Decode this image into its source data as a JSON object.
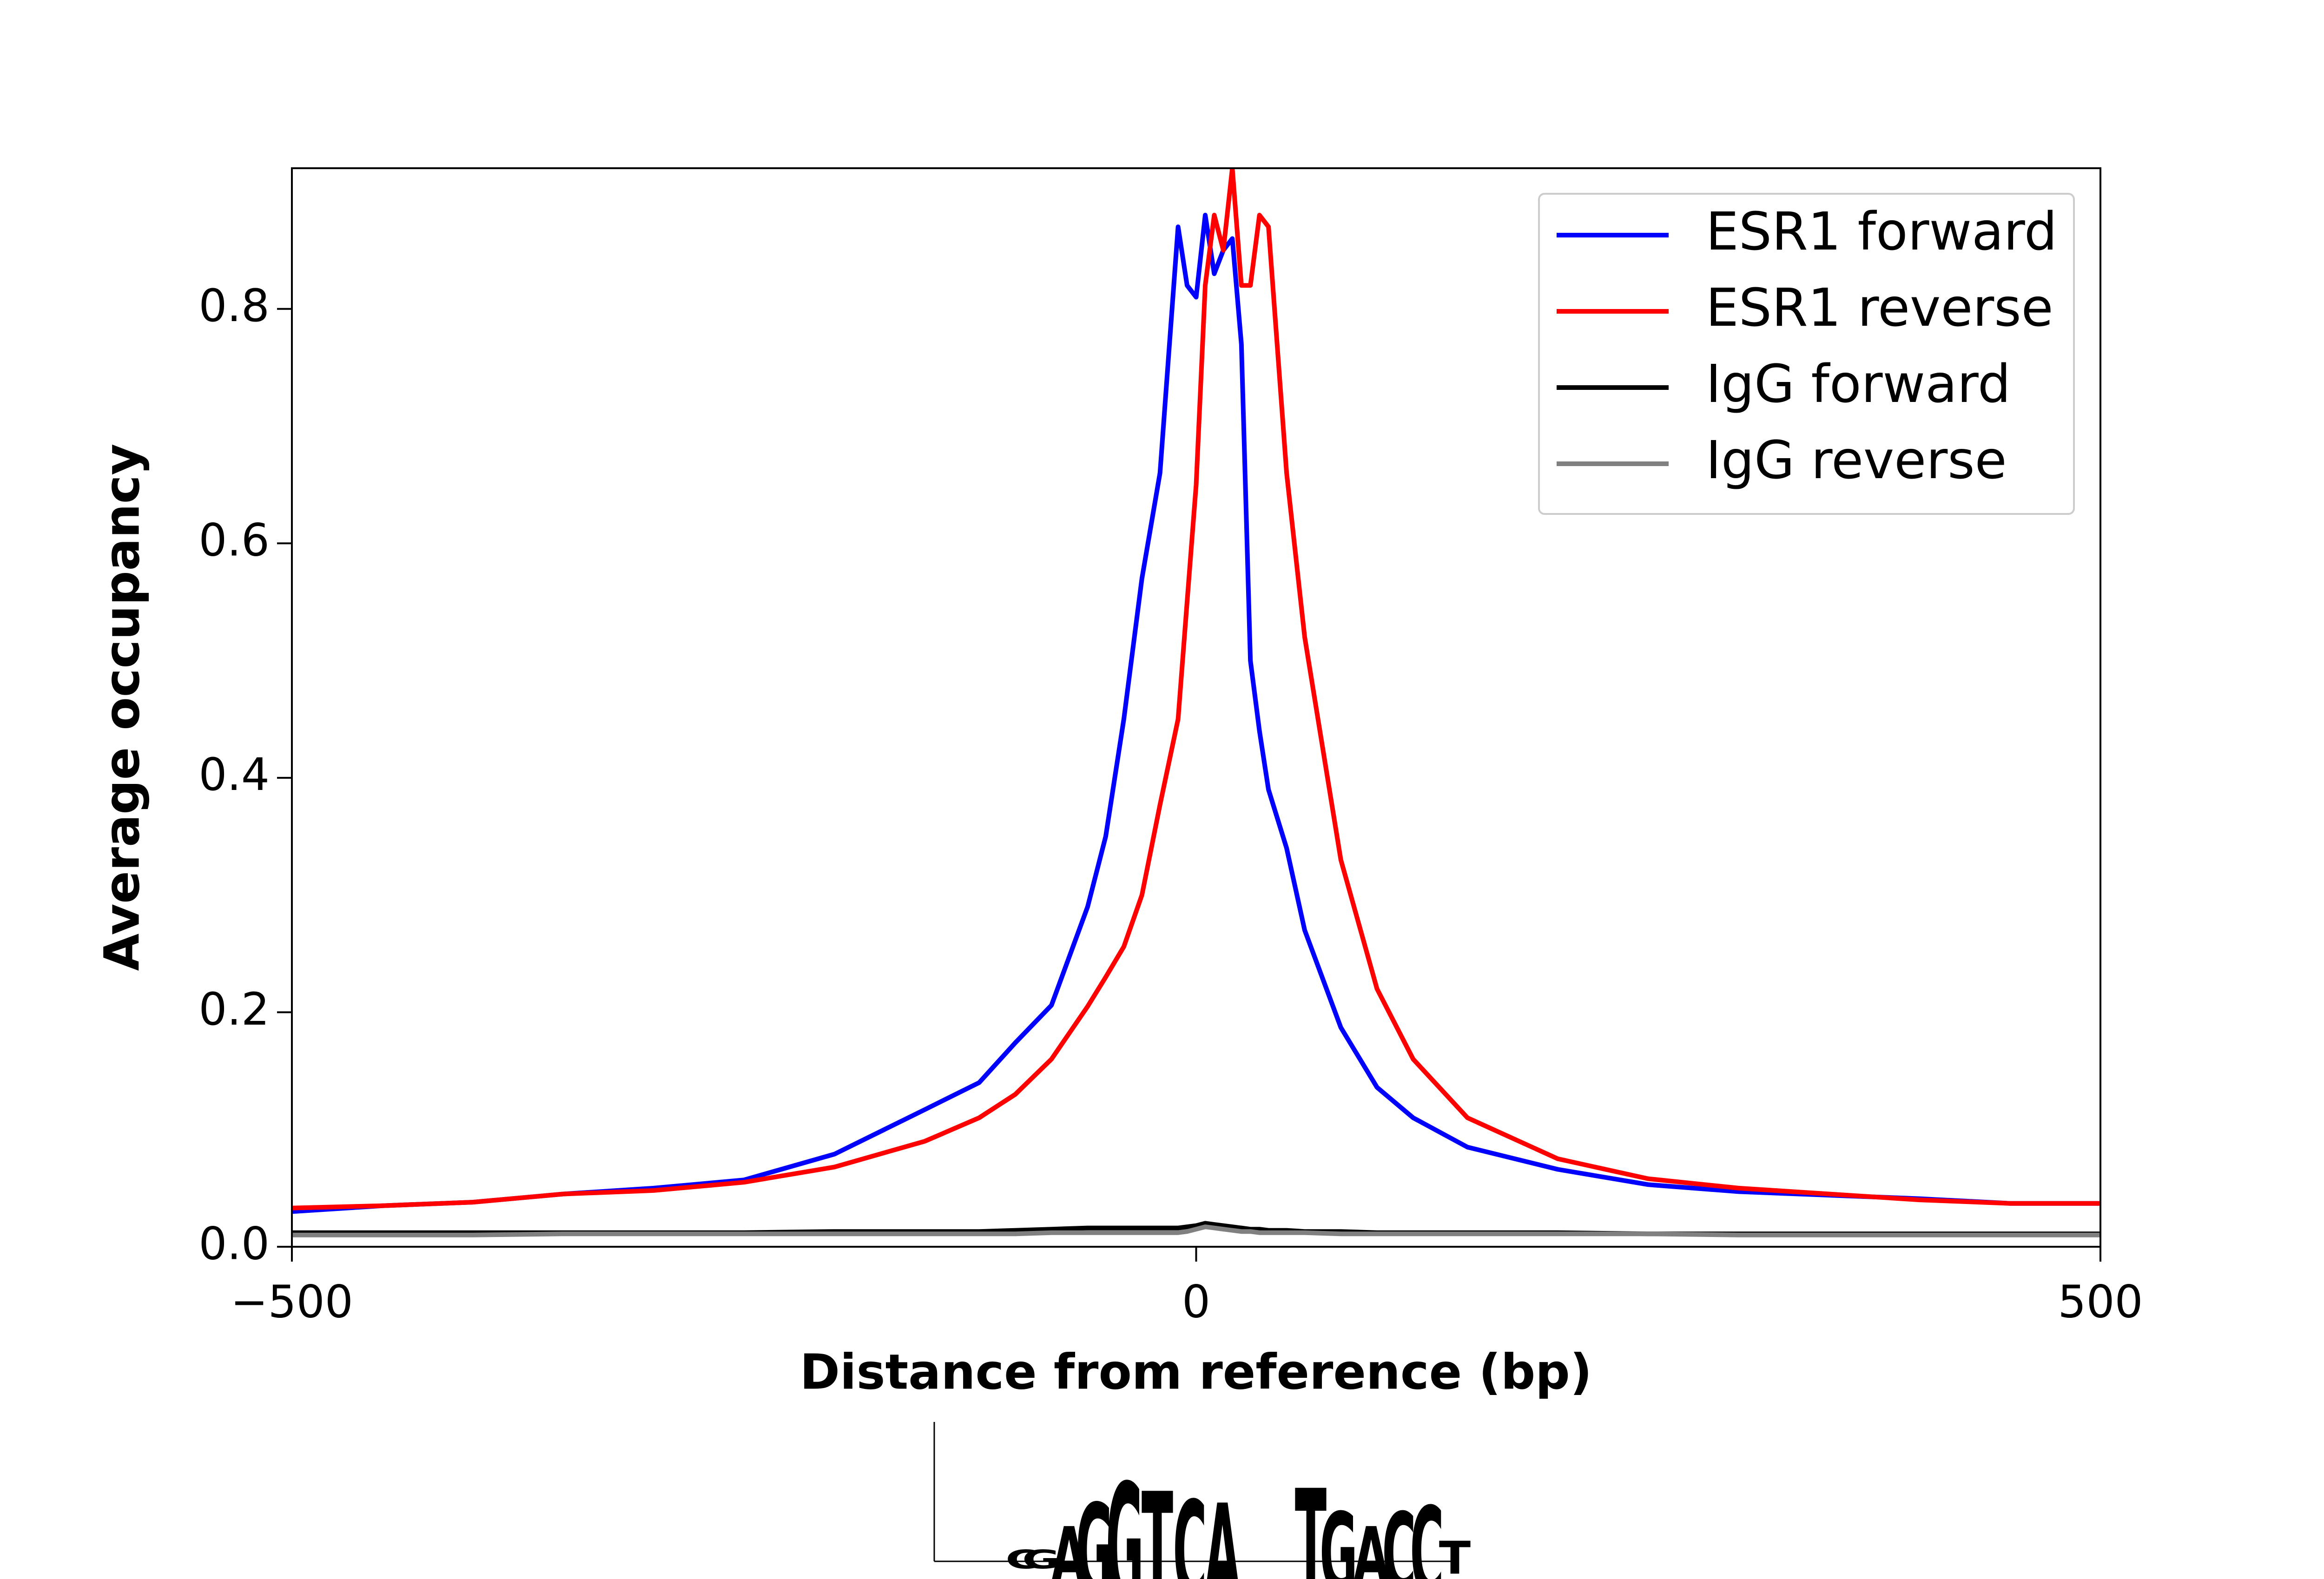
{
  "chart_data": {
    "type": "line",
    "xlabel": "Distance from reference (bp)",
    "ylabel": "Average occupancy",
    "x": [
      -500,
      -450,
      -400,
      -350,
      -300,
      -250,
      -200,
      -150,
      -120,
      -100,
      -80,
      -60,
      -50,
      -40,
      -30,
      -20,
      -10,
      -5,
      0,
      5,
      10,
      15,
      20,
      25,
      30,
      35,
      40,
      50,
      60,
      80,
      100,
      120,
      150,
      200,
      250,
      300,
      350,
      400,
      450,
      500
    ],
    "series": [
      {
        "name": "ESR1 forward",
        "color": "#0000ff",
        "values": [
          0.03,
          0.035,
          0.038,
          0.045,
          0.05,
          0.057,
          0.079,
          0.117,
          0.14,
          0.174,
          0.206,
          0.29,
          0.35,
          0.45,
          0.57,
          0.66,
          0.87,
          0.82,
          0.81,
          0.88,
          0.83,
          0.85,
          0.86,
          0.77,
          0.5,
          0.44,
          0.39,
          0.34,
          0.27,
          0.187,
          0.136,
          0.11,
          0.085,
          0.066,
          0.053,
          0.047,
          0.044,
          0.041,
          0.037,
          0.037
        ]
      },
      {
        "name": "ESR1 reverse",
        "color": "#ff0000",
        "values": [
          0.033,
          0.035,
          0.038,
          0.045,
          0.048,
          0.055,
          0.068,
          0.09,
          0.11,
          0.13,
          0.16,
          0.205,
          0.23,
          0.256,
          0.3,
          0.377,
          0.45,
          0.55,
          0.65,
          0.82,
          0.88,
          0.85,
          0.92,
          0.82,
          0.82,
          0.88,
          0.87,
          0.66,
          0.52,
          0.33,
          0.22,
          0.16,
          0.11,
          0.075,
          0.058,
          0.05,
          0.045,
          0.04,
          0.037,
          0.037
        ]
      },
      {
        "name": "IgG forward",
        "color": "#000000",
        "values": [
          0.012,
          0.012,
          0.012,
          0.012,
          0.012,
          0.012,
          0.013,
          0.013,
          0.013,
          0.014,
          0.015,
          0.016,
          0.016,
          0.016,
          0.016,
          0.016,
          0.016,
          0.017,
          0.018,
          0.02,
          0.019,
          0.018,
          0.017,
          0.016,
          0.015,
          0.015,
          0.014,
          0.014,
          0.013,
          0.013,
          0.012,
          0.012,
          0.012,
          0.012,
          0.011,
          0.011,
          0.011,
          0.011,
          0.011,
          0.011
        ]
      },
      {
        "name": "IgG reverse",
        "color": "#808080",
        "values": [
          0.01,
          0.01,
          0.01,
          0.011,
          0.011,
          0.011,
          0.011,
          0.011,
          0.011,
          0.011,
          0.012,
          0.012,
          0.012,
          0.012,
          0.012,
          0.012,
          0.012,
          0.013,
          0.015,
          0.017,
          0.016,
          0.015,
          0.014,
          0.013,
          0.013,
          0.012,
          0.012,
          0.012,
          0.012,
          0.011,
          0.011,
          0.011,
          0.011,
          0.011,
          0.011,
          0.01,
          0.01,
          0.01,
          0.01,
          0.01
        ]
      }
    ],
    "xlim": [
      -500,
      500
    ],
    "ylim": [
      0,
      0.92
    ],
    "xticks": [
      {
        "value": -500,
        "label": "−500"
      },
      0,
      500
    ],
    "yticks": [
      {
        "value": 0,
        "label": "0.0"
      },
      {
        "value": 0.2,
        "label": "0.2"
      },
      {
        "value": 0.4,
        "label": "0.4"
      },
      {
        "value": 0.6,
        "label": "0.6"
      },
      {
        "value": 0.8,
        "label": "0.8"
      }
    ],
    "legend": "upper right",
    "grid": false
  },
  "motif_logo": {
    "letters": [
      "C",
      "G",
      "A",
      "G",
      "G",
      "T",
      "C",
      "A",
      "T",
      "G",
      "A",
      "C",
      "C",
      "T"
    ]
  }
}
